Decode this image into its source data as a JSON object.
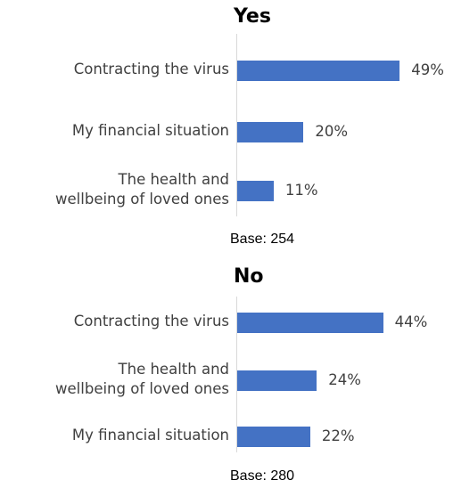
{
  "chart_data": [
    {
      "type": "bar",
      "orientation": "horizontal",
      "title": "Yes",
      "categories": [
        "Contracting the virus",
        "My financial situation",
        "The health and wellbeing of loved ones"
      ],
      "category_lines": [
        [
          "Contracting the virus"
        ],
        [
          "My financial situation"
        ],
        [
          "The health and",
          "wellbeing of loved ones"
        ]
      ],
      "values": [
        49,
        20,
        11
      ],
      "value_labels": [
        "49%",
        "20%",
        "11%"
      ],
      "base_note": "Base: 254",
      "grid": false
    },
    {
      "type": "bar",
      "orientation": "horizontal",
      "title": "No",
      "categories": [
        "Contracting the virus",
        "The health and wellbeing of loved ones",
        "My financial situation"
      ],
      "category_lines": [
        [
          "Contracting the virus"
        ],
        [
          "The health and",
          "wellbeing of loved ones"
        ],
        [
          "My financial situation"
        ]
      ],
      "values": [
        44,
        24,
        22
      ],
      "value_labels": [
        "44%",
        "24%",
        "22%"
      ],
      "base_note": "Base: 280",
      "grid": false
    }
  ],
  "colors": {
    "bar": "#4472c4",
    "label": "#404040"
  }
}
